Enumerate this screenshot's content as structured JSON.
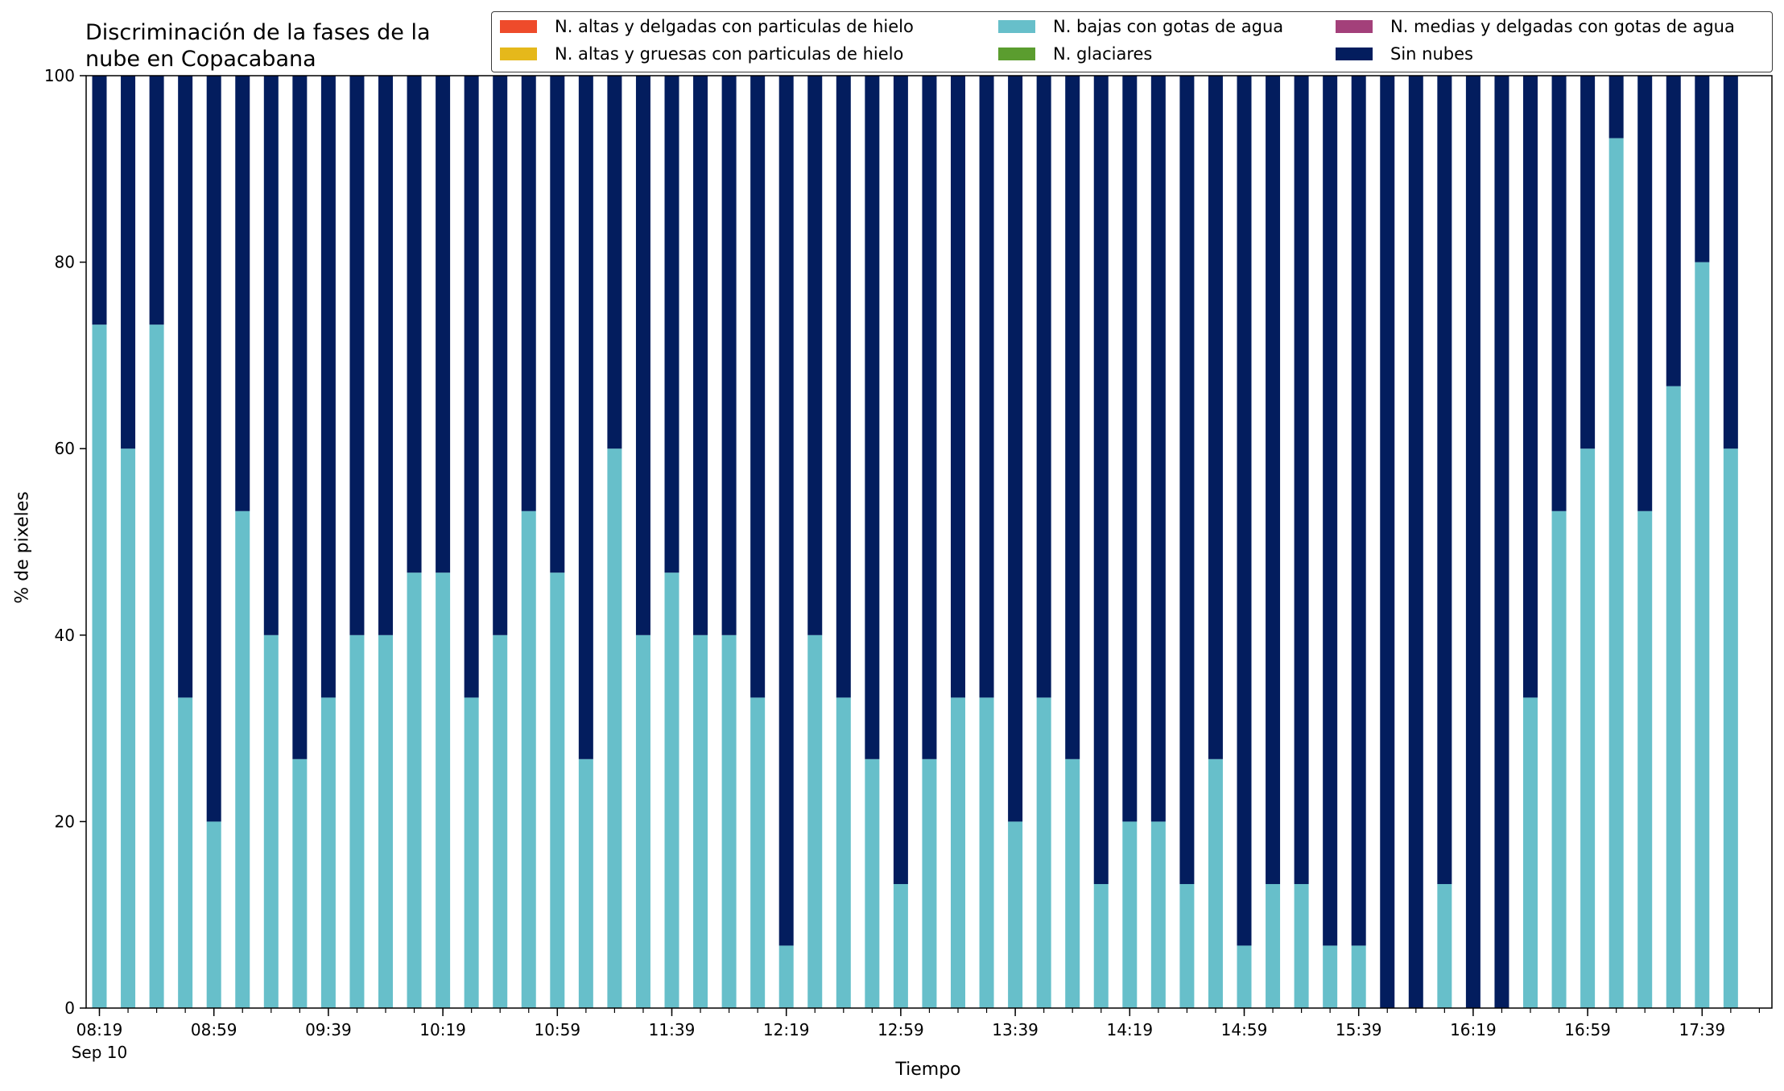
{
  "chart_data": {
    "type": "bar",
    "stacked": true,
    "title": "Discriminación de la fases de la\nnube en Copacabana",
    "xlabel": "Tiempo",
    "ylabel": "% de pixeles",
    "ylim": [
      0,
      100
    ],
    "yticks": [
      0,
      20,
      40,
      60,
      80,
      100
    ],
    "grid": false,
    "legend_position": "top-right",
    "x_tick_labels": [
      "08:19",
      "08:59",
      "09:39",
      "10:19",
      "10:59",
      "11:39",
      "12:19",
      "12:59",
      "13:39",
      "14:19",
      "14:59",
      "15:39",
      "16:19",
      "16:59",
      "17:39"
    ],
    "x_tick_sublabel": "Sep 10",
    "bar_count": 58,
    "series": [
      {
        "name": "N. altas y delgadas con particulas de hielo",
        "color": "#ee4b2b",
        "values": []
      },
      {
        "name": "N. altas y gruesas con particulas de hielo",
        "color": "#e5b81b",
        "values": []
      },
      {
        "name": "N. bajas con gotas de agua",
        "color": "#67bfca",
        "values": [
          73.3,
          60,
          73.3,
          33.3,
          20,
          53.3,
          40,
          26.7,
          33.3,
          40,
          40,
          46.7,
          46.7,
          33.3,
          40,
          53.3,
          46.7,
          26.7,
          60,
          40,
          46.7,
          40,
          40,
          33.3,
          6.7,
          40,
          33.3,
          26.7,
          13.3,
          26.7,
          33.3,
          33.3,
          20,
          33.3,
          26.7,
          13.3,
          20,
          20,
          13.3,
          26.7,
          6.7,
          13.3,
          13.3,
          6.7,
          6.7,
          0,
          0,
          13.3,
          0,
          0,
          33.3,
          53.3,
          60,
          93.3,
          53.3,
          66.7,
          80,
          60
        ]
      },
      {
        "name": "N. glaciares",
        "color": "#5b9d2f",
        "values": []
      },
      {
        "name": "N. medias y delgadas con gotas de agua",
        "color": "#a3407a",
        "values": []
      },
      {
        "name": "Sin nubes",
        "color": "#031d5e",
        "values": [
          26.7,
          40,
          26.7,
          66.7,
          80,
          46.7,
          60,
          73.3,
          66.7,
          60,
          60,
          53.3,
          53.3,
          66.7,
          60,
          46.7,
          53.3,
          73.3,
          40,
          60,
          53.3,
          60,
          60,
          66.7,
          93.3,
          60,
          66.7,
          73.3,
          86.7,
          73.3,
          66.7,
          66.7,
          80,
          66.7,
          73.3,
          86.7,
          80,
          80,
          86.7,
          73.3,
          93.3,
          86.7,
          86.7,
          93.3,
          93.3,
          100,
          100,
          86.7,
          100,
          100,
          66.7,
          46.7,
          40,
          6.7,
          46.7,
          33.3,
          20,
          40
        ]
      }
    ]
  }
}
